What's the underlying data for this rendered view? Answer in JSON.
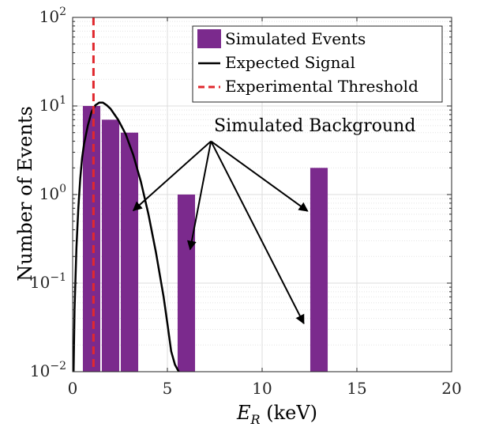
{
  "chart_data": {
    "type": "bar",
    "xlabel_main": "E",
    "xlabel_sub": "R",
    "xlabel_rest": " (keV)",
    "ylabel": "Number of Events",
    "xlim": [
      0,
      20
    ],
    "ylim_log10": [
      -2,
      2
    ],
    "yscale": "log",
    "grid": true,
    "x_ticks": [
      0,
      5,
      10,
      15,
      20
    ],
    "x_tick_labels": [
      "0",
      "5",
      "10",
      "15",
      "20"
    ],
    "y_ticks": [
      {
        "value": 100,
        "base": "10",
        "exp": "2"
      },
      {
        "value": 10,
        "base": "10",
        "exp": "1"
      },
      {
        "value": 1,
        "base": "10",
        "exp": "0"
      },
      {
        "value": 0.1,
        "base": "10",
        "exp": "−1"
      },
      {
        "value": 0.01,
        "base": "10",
        "exp": "−2"
      }
    ],
    "bars": [
      {
        "x": 1.0,
        "value": 10
      },
      {
        "x": 2.0,
        "value": 7
      },
      {
        "x": 3.0,
        "value": 5
      },
      {
        "x": 6.0,
        "value": 1
      },
      {
        "x": 13.0,
        "value": 2
      }
    ],
    "bar_width": 0.92,
    "bar_color": "#7B2A8D",
    "signal_curve": {
      "x": [
        0.05,
        0.1,
        0.2,
        0.3,
        0.4,
        0.5,
        0.6,
        0.8,
        1.0,
        1.2,
        1.4,
        1.6,
        1.8,
        2.0,
        2.4,
        2.8,
        3.2,
        3.6,
        4.0,
        4.4,
        4.8,
        5.0,
        5.2,
        5.4,
        5.6,
        5.7,
        5.8
      ],
      "values": [
        0.01,
        0.05,
        0.25,
        0.7,
        1.5,
        2.6,
        3.7,
        6.0,
        8.6,
        10.2,
        10.9,
        10.9,
        10.2,
        9.3,
        7.0,
        4.8,
        2.8,
        1.4,
        0.6,
        0.22,
        0.07,
        0.035,
        0.017,
        0.012,
        0.01,
        0.0085,
        0.0078
      ],
      "color": "#000000"
    },
    "threshold": {
      "x": 1.1,
      "color": "#E0282E"
    },
    "legend": {
      "position": "top-right",
      "entries": [
        {
          "label": "Simulated Events",
          "kind": "patch",
          "color": "#7B2A8D"
        },
        {
          "label": "Expected Signal",
          "kind": "line",
          "color": "#000000"
        },
        {
          "label": "Experimental Threshold",
          "kind": "dashed",
          "color": "#E0282E"
        }
      ]
    },
    "annotation": {
      "text": "Simulated Background",
      "origin": {
        "x": 7.3,
        "y": 4.0
      },
      "targets": [
        {
          "x": 3.2,
          "y": 0.66
        },
        {
          "x": 6.2,
          "y": 0.24
        },
        {
          "x": 12.4,
          "y": 0.65
        },
        {
          "x": 12.2,
          "y": 0.035
        }
      ]
    }
  }
}
